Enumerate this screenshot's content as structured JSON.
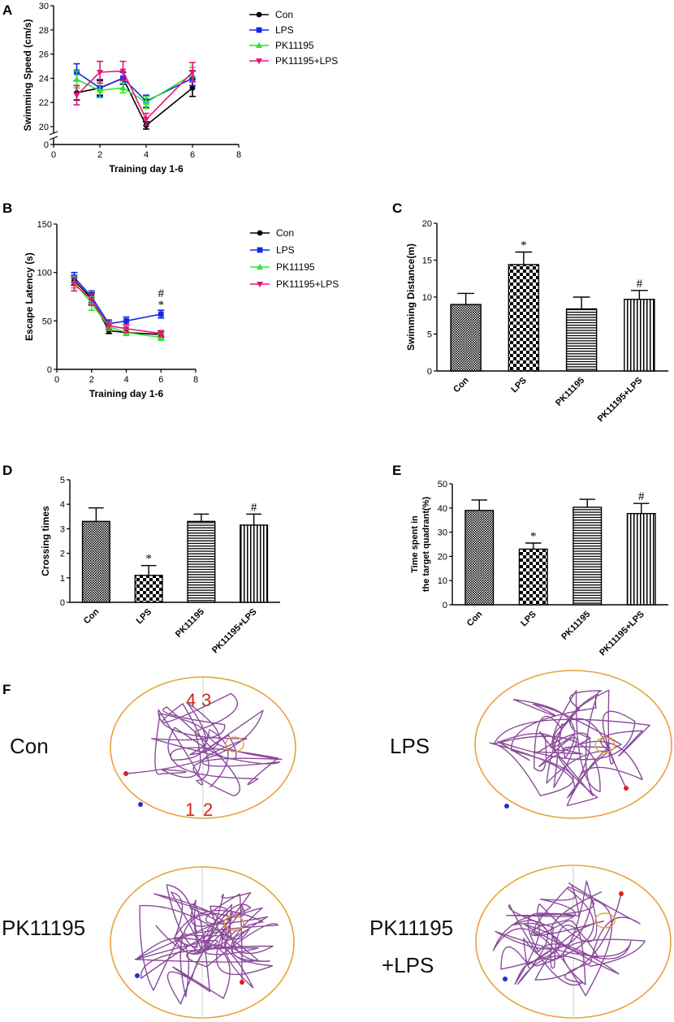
{
  "colors": {
    "con": "#000000",
    "lps": "#1428e6",
    "pk": "#2ee62a",
    "pklps": "#e8157a",
    "track": "#8a4a9a",
    "pool": "#e8a23a",
    "platform": "#e8a23a",
    "start": "#e0201c",
    "end": "#1e2fd0"
  },
  "panel_letters": {
    "a": "A",
    "b": "B",
    "c": "C",
    "d": "D",
    "e": "E",
    "f": "F"
  },
  "legend": [
    "Con",
    "LPS",
    "PK11195",
    "PK11195+LPS"
  ],
  "chart_data": [
    {
      "id": "A",
      "type": "line",
      "title": "",
      "xlabel": "Training day 1-6",
      "ylabel": "Swimming Speed (cm/s)",
      "x_ticks": [
        0,
        2,
        4,
        6,
        8
      ],
      "xlim": [
        0,
        8
      ],
      "y_ticks": [
        0,
        20,
        22,
        24,
        26,
        28,
        30
      ],
      "ylim": [
        20,
        30
      ],
      "axis_break": true,
      "x": [
        1,
        2,
        3,
        4,
        6
      ],
      "series": [
        {
          "name": "Con",
          "values": [
            22.8,
            23.2,
            24.0,
            20.1,
            23.2
          ],
          "errors": [
            0.6,
            0.6,
            0.5,
            0.3,
            0.7
          ]
        },
        {
          "name": "LPS",
          "values": [
            24.5,
            23.2,
            24.0,
            22.1,
            24.0
          ],
          "errors": [
            0.7,
            0.7,
            0.5,
            0.5,
            0.6
          ]
        },
        {
          "name": "PK11195",
          "values": [
            23.9,
            23.0,
            23.2,
            22.0,
            24.3
          ],
          "errors": [
            0.7,
            0.6,
            0.4,
            0.5,
            0.6
          ]
        },
        {
          "name": "PK11195+LPS",
          "values": [
            22.6,
            24.5,
            24.6,
            20.6,
            24.5
          ],
          "errors": [
            0.8,
            0.9,
            0.8,
            0.5,
            0.8
          ]
        }
      ]
    },
    {
      "id": "B",
      "type": "line",
      "title": "",
      "xlabel": "Training day 1-6",
      "ylabel": "Escape Latency (s)",
      "x_ticks": [
        0,
        2,
        4,
        6,
        8
      ],
      "xlim": [
        0,
        8
      ],
      "y_ticks": [
        0,
        50,
        100,
        150
      ],
      "ylim": [
        0,
        150
      ],
      "x": [
        1,
        2,
        3,
        4,
        6
      ],
      "series": [
        {
          "name": "Con",
          "values": [
            92,
            73,
            40,
            38,
            36
          ],
          "errors": [
            5,
            6,
            3,
            3,
            3
          ]
        },
        {
          "name": "LPS",
          "values": [
            95,
            75,
            47,
            50,
            57
          ],
          "errors": [
            5,
            6,
            4,
            4,
            4
          ]
        },
        {
          "name": "PK11195",
          "values": [
            90,
            68,
            44,
            38,
            33
          ],
          "errors": [
            6,
            7,
            4,
            3,
            3
          ]
        },
        {
          "name": "PK11195+LPS",
          "values": [
            88,
            72,
            45,
            42,
            37
          ],
          "errors": [
            7,
            6,
            4,
            4,
            3
          ]
        }
      ],
      "annotations": [
        {
          "x": 6,
          "text": "#"
        },
        {
          "x": 6,
          "text": "*"
        }
      ]
    },
    {
      "id": "C",
      "type": "bar",
      "ylabel": "Swimming Distance(m)",
      "categories": [
        "Con",
        "LPS",
        "PK11195",
        "PK11195+LPS"
      ],
      "values": [
        9.0,
        14.4,
        8.4,
        9.7
      ],
      "errors": [
        1.5,
        1.7,
        1.6,
        1.2
      ],
      "y_ticks": [
        0,
        5,
        10,
        15,
        20
      ],
      "ylim": [
        0,
        20
      ],
      "marks": [
        "",
        "*",
        "",
        "#"
      ],
      "patterns": [
        "dense",
        "checker",
        "horizontal",
        "vertical"
      ]
    },
    {
      "id": "D",
      "type": "bar",
      "ylabel": "Crossing times",
      "categories": [
        "Con",
        "LPS",
        "PK11195",
        "PK11195+LPS"
      ],
      "values": [
        3.3,
        1.1,
        3.3,
        3.15
      ],
      "errors": [
        0.55,
        0.4,
        0.3,
        0.45
      ],
      "y_ticks": [
        0,
        1,
        2,
        3,
        4,
        5
      ],
      "ylim": [
        0,
        5
      ],
      "marks": [
        "",
        "*",
        "",
        "#"
      ],
      "patterns": [
        "dense",
        "checker",
        "horizontal",
        "vertical"
      ]
    },
    {
      "id": "E",
      "type": "bar",
      "ylabel": [
        "Time spent in",
        "the target quadrant(%)"
      ],
      "categories": [
        "Con",
        "LPS",
        "PK11195",
        "PK11195+LPS"
      ],
      "values": [
        39,
        23,
        40.3,
        37.7
      ],
      "errors": [
        4.3,
        2.5,
        3.3,
        4.2
      ],
      "y_ticks": [
        0,
        10,
        20,
        30,
        40,
        50
      ],
      "ylim": [
        0,
        50
      ],
      "marks": [
        "",
        "*",
        "",
        "#"
      ],
      "patterns": [
        "dense",
        "checker",
        "horizontal",
        "vertical"
      ]
    }
  ],
  "maze": {
    "labels": [
      "Con",
      "LPS",
      "PK11195",
      "PK11195",
      "+LPS"
    ],
    "quadrants": [
      "4",
      "3",
      "1",
      "2"
    ]
  }
}
